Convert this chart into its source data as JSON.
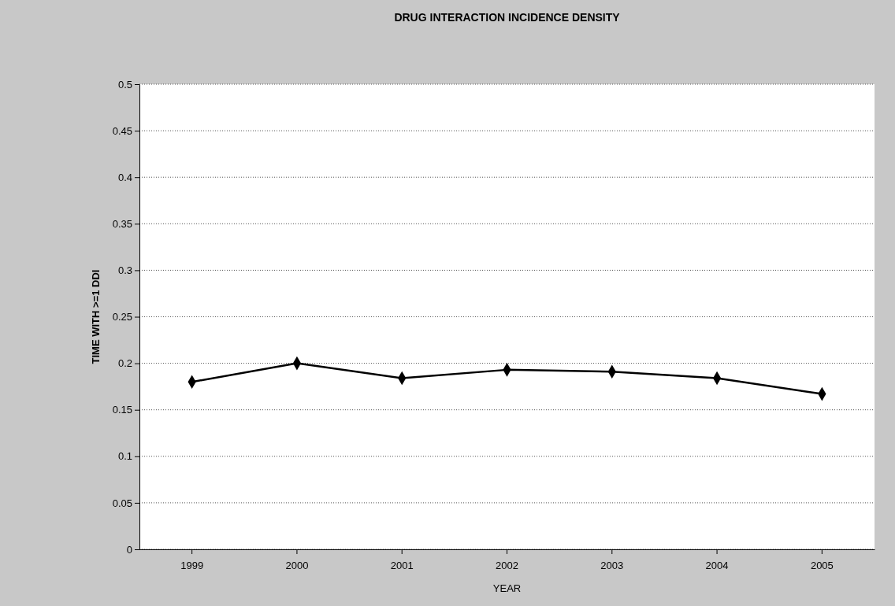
{
  "chart_data": {
    "type": "line",
    "title": "DRUG INTERACTION INCIDENCE DENSITY",
    "xlabel": "YEAR",
    "ylabel": "TIME WITH >=1 DDI",
    "categories": [
      "1999",
      "2000",
      "2001",
      "2002",
      "2003",
      "2004",
      "2005"
    ],
    "series": [
      {
        "color": "#000000",
        "values": [
          0.18,
          0.2,
          0.184,
          0.193,
          0.191,
          0.184,
          0.167
        ]
      }
    ],
    "ylim": [
      0,
      0.5
    ],
    "yticks": [
      0,
      0.05,
      0.1,
      0.15,
      0.2,
      0.25,
      0.3,
      0.35,
      0.4,
      0.45,
      0.5
    ],
    "grid": "y",
    "marker": "diamond",
    "line_style": "solid"
  }
}
